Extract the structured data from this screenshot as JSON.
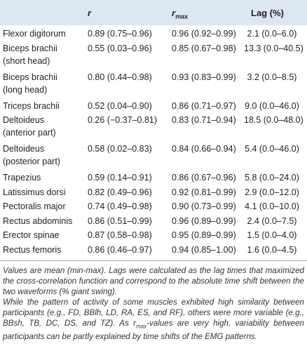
{
  "table": {
    "header": {
      "col1": "r",
      "col2": {
        "main": "r",
        "sub": "max"
      },
      "col3": "Lag (%)"
    },
    "rows": [
      {
        "name": [
          "Flexor digitorum"
        ],
        "r": "0.89 (0.75–0.96)",
        "rmax": "0.96 (0.92–0.99)",
        "lag": "2.1 (0.0–6.0)"
      },
      {
        "name": [
          "Biceps brachii",
          "(short head)"
        ],
        "r": "0.55 (0.03–0.96)",
        "rmax": "0.85 (0.67–0.98)",
        "lag": "13.3 (0.0–40.5)"
      },
      {
        "name": [
          "Biceps brachii",
          "(long head)"
        ],
        "r": "0.80 (0.44–0.98)",
        "rmax": "0.93 (0.83–0.99)",
        "lag": "3.2 (0.0–8.5)"
      },
      {
        "name": [
          "Triceps brachii"
        ],
        "r": "0.52 (0.04–0.90)",
        "rmax": "0.86 (0.71–0.97)",
        "lag": "9.0 (0.0–46.0)"
      },
      {
        "name": [
          "Deltoideus",
          "(anterior part)"
        ],
        "r": "0.26 (−0.37–0.81)",
        "rmax": "0.83 (0.71–0.94)",
        "lag": "18.5 (0.0–48.0)"
      },
      {
        "name": [
          "Deltoideus",
          "(posterior part)"
        ],
        "r": "0.58 (0.02–0.83)",
        "rmax": "0.84 (0.66–0.94)",
        "lag": "5.4 (0.0–46.0)"
      },
      {
        "name": [
          "Trapezius"
        ],
        "r": "0.59 (0.14–0.91)",
        "rmax": "0.86 (0.67–0.96)",
        "lag": "5.8 (0.0–24.0)"
      },
      {
        "name": [
          "Latissimus dorsi"
        ],
        "r": "0.82 (0.49–0.96)",
        "rmax": "0.92 (0.81–0.99)",
        "lag": "2.9 (0.0–12.0)"
      },
      {
        "name": [
          "Pectoralis major"
        ],
        "r": "0.74 (0.49–0.98)",
        "rmax": "0.90 (0.73–0.99)",
        "lag": "4.1 (0.0–10.0)"
      },
      {
        "name": [
          "Rectus abdominis"
        ],
        "r": "0.86 (0.51–0.99)",
        "rmax": "0.96 (0.89–0.99)",
        "lag": "2.4 (0.0–7.5)"
      },
      {
        "name": [
          "Erector spinae"
        ],
        "r": "0.87 (0.58–0.98)",
        "rmax": "0.95 (0.89–0.99)",
        "lag": "1.5 (0.0–4.0)"
      },
      {
        "name": [
          "Rectus femoris"
        ],
        "r": "0.86 (0.46–0.97)",
        "rmax": "0.94 (0.85–1.00)",
        "lag": "1.6 (0.0–4.5)"
      }
    ]
  },
  "notes": {
    "note1": "Values are mean (min-max). Lags were calculated as the lag times that maximized the cross-correlation function and correspond to the absolute time shift between the two waveforms (% giant swing).",
    "note2": [
      "While the pattern of activity of some muscles exhibited high similarity between participants (e.g., FD, BBlh, LD, RA, ES, and RF), others were more variable (e.g., BBsh, TB, DC, DS, and TZ). As ",
      "r",
      "max",
      "-values are very high, variability between participants can be partly explained by time shifts of the EMG patterns."
    ]
  }
}
